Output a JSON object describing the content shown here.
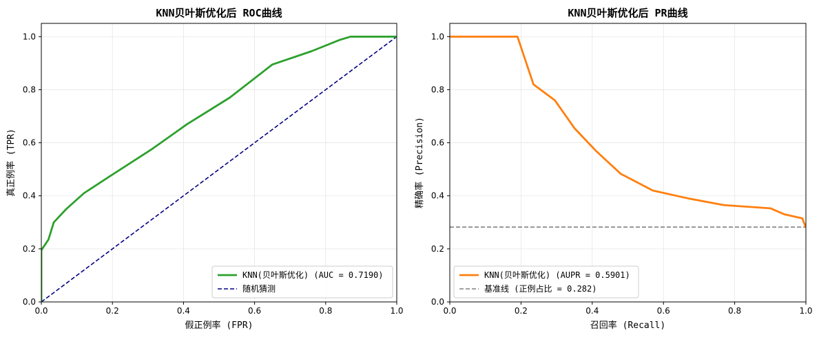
{
  "chart_data": [
    {
      "type": "line",
      "title": "KNN贝叶斯优化后 ROC曲线",
      "xlabel": "假正例率 (FPR)",
      "ylabel": "真正例率 (TPR)",
      "xlim": [
        0,
        1
      ],
      "ylim": [
        0,
        1.05
      ],
      "xticks": [
        0.0,
        0.2,
        0.4,
        0.6,
        0.8,
        1.0
      ],
      "yticks": [
        0.0,
        0.2,
        0.4,
        0.6,
        0.8,
        1.0
      ],
      "xtick_labels": [
        "0.0",
        "0.2",
        "0.4",
        "0.6",
        "0.8",
        "1.0"
      ],
      "ytick_labels": [
        "0.0",
        "0.2",
        "0.4",
        "0.6",
        "0.8",
        "1.0"
      ],
      "grid": true,
      "legend_position": "lower-right",
      "series": [
        {
          "name": "KNN(贝叶斯优化) (AUC = 0.7190)",
          "color": "#2ca02c",
          "style": "solid",
          "x": [
            0,
            0,
            0.02,
            0.035,
            0.07,
            0.12,
            0.2,
            0.31,
            0.41,
            0.53,
            0.65,
            0.76,
            0.84,
            0.87,
            1.0
          ],
          "y": [
            0,
            0.195,
            0.235,
            0.3,
            0.35,
            0.41,
            0.48,
            0.575,
            0.67,
            0.77,
            0.895,
            0.945,
            0.988,
            1.0,
            1.0
          ]
        },
        {
          "name": "随机猜测",
          "color": "#000080",
          "style": "dashed",
          "x": [
            0,
            1
          ],
          "y": [
            0,
            1
          ]
        }
      ]
    },
    {
      "type": "line",
      "title": "KNN贝叶斯优化后 PR曲线",
      "xlabel": "召回率 (Recall)",
      "ylabel": "精确率 (Precision)",
      "xlim": [
        0,
        1
      ],
      "ylim": [
        0,
        1.05
      ],
      "xticks": [
        0.0,
        0.2,
        0.4,
        0.6,
        0.8,
        1.0
      ],
      "yticks": [
        0.0,
        0.2,
        0.4,
        0.6,
        0.8,
        1.0
      ],
      "xtick_labels": [
        "0.0",
        "0.2",
        "0.4",
        "0.6",
        "0.8",
        "1.0"
      ],
      "ytick_labels": [
        "0.0",
        "0.2",
        "0.4",
        "0.6",
        "0.8",
        "1.0"
      ],
      "grid": true,
      "legend_position": "lower-left",
      "series": [
        {
          "name": "KNN(贝叶斯优化) (AUPR = 0.5901)",
          "color": "#ff7f0e",
          "style": "solid",
          "x": [
            0,
            0.19,
            0.235,
            0.295,
            0.35,
            0.41,
            0.48,
            0.57,
            0.67,
            0.77,
            0.9,
            0.94,
            0.99,
            1.0
          ],
          "y": [
            1.0,
            1.0,
            0.82,
            0.76,
            0.655,
            0.57,
            0.483,
            0.42,
            0.39,
            0.365,
            0.353,
            0.33,
            0.315,
            0.28
          ]
        },
        {
          "name": "基准线 (正例占比 = 0.282)",
          "color": "#808080",
          "style": "dashed",
          "x": [
            0,
            1
          ],
          "y": [
            0.282,
            0.282
          ]
        }
      ]
    }
  ]
}
